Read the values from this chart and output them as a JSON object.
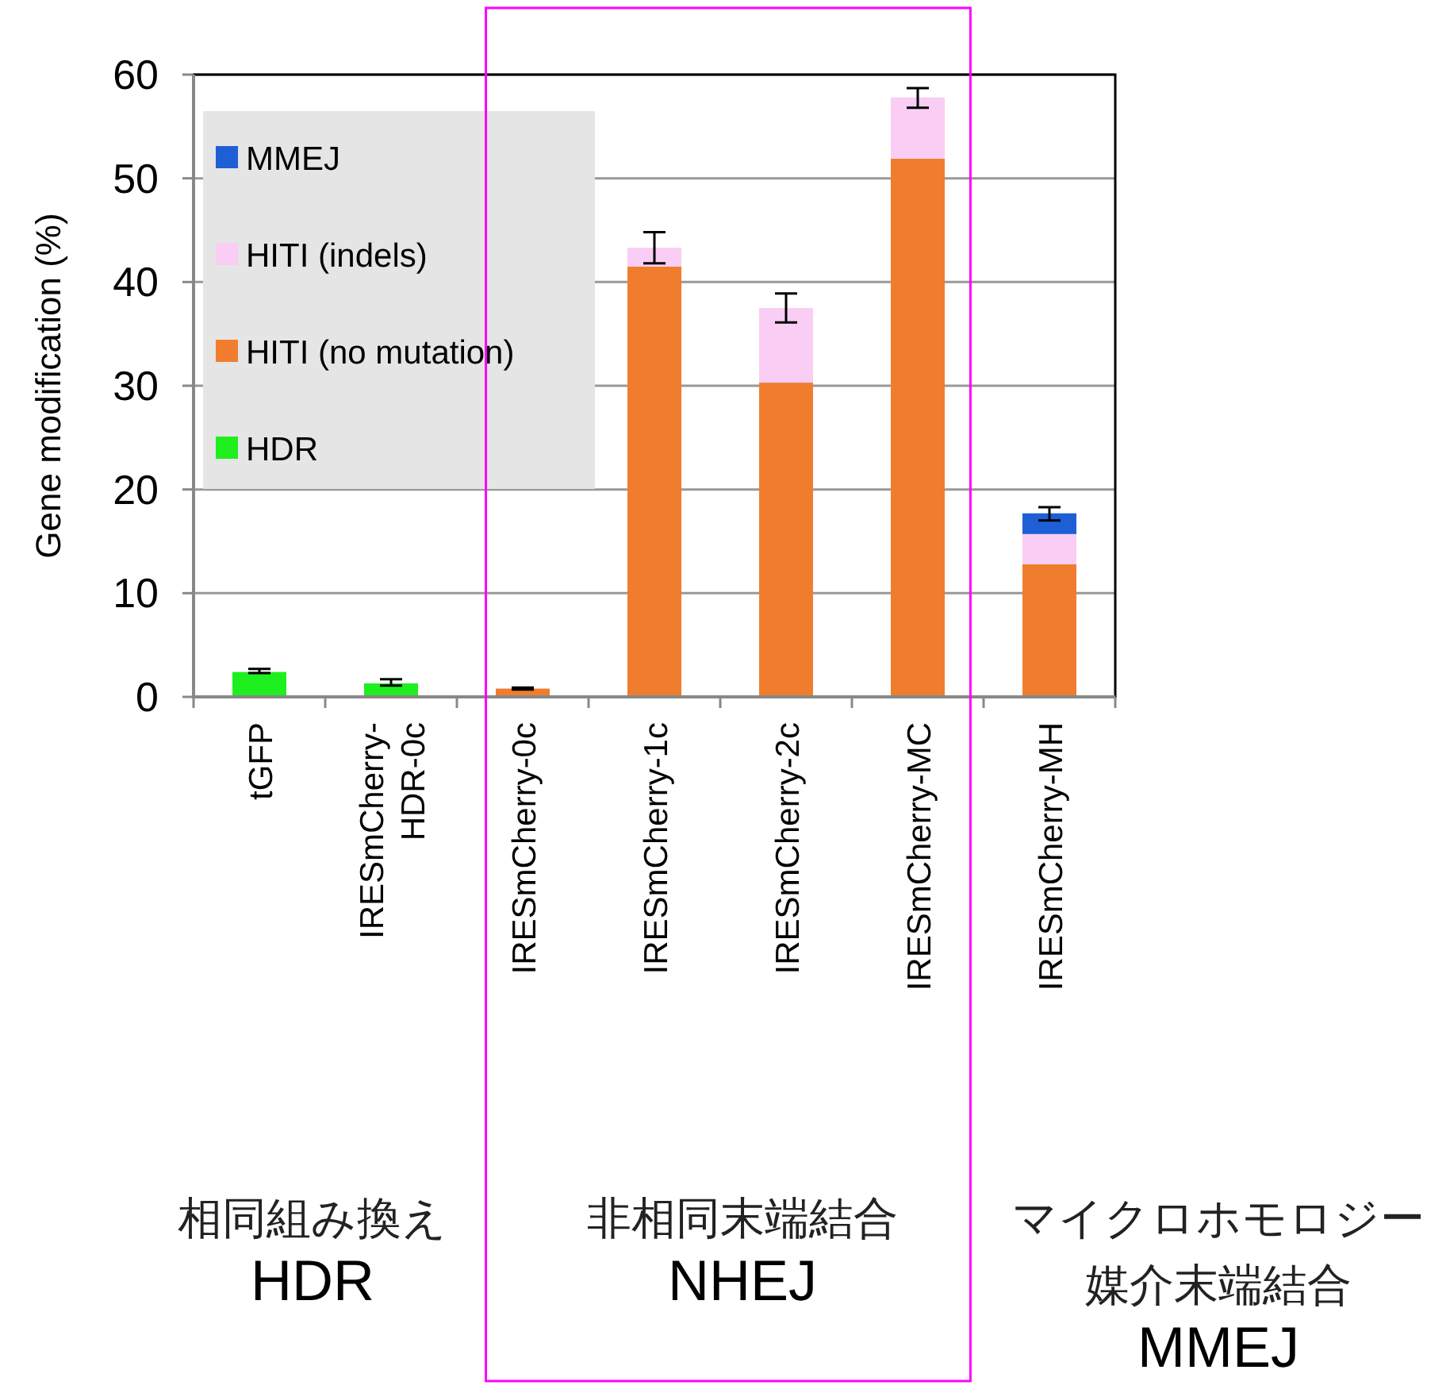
{
  "chart_data": {
    "type": "bar",
    "stacked": true,
    "ylabel": "Gene modification (%)",
    "categories": [
      "tGFP",
      "IRESmCherry-HDR-0c",
      "IRESmCherry-0c",
      "IRESmCherry-1c",
      "IRESmCherry-2c",
      "IRESmCherry-MC",
      "IRESmCherry-MH"
    ],
    "series": [
      {
        "name": "HDR",
        "color": "#1fee1f",
        "values": [
          2.4,
          1.3,
          0,
          0,
          0,
          0,
          0
        ],
        "errors": [
          [
            2.3,
            2.7
          ],
          [
            1.1,
            1.7
          ],
          null,
          null,
          null,
          null,
          null
        ]
      },
      {
        "name": "HITI (no mutation)",
        "color": "#f07d2e",
        "values": [
          0,
          0,
          0.8,
          41.5,
          30.3,
          51.9,
          12.8
        ],
        "errors": [
          null,
          null,
          [
            0.7,
            0.9
          ],
          null,
          null,
          null,
          null
        ]
      },
      {
        "name": "HITI (indels)",
        "color": "#f9cdf4",
        "values": [
          0,
          0,
          0,
          1.8,
          7.2,
          5.9,
          2.9
        ],
        "errors": [
          null,
          null,
          null,
          [
            41.8,
            44.8
          ],
          [
            36.1,
            38.9
          ],
          [
            56.8,
            58.7
          ],
          null
        ]
      },
      {
        "name": "MMEJ",
        "color": "#1f5fd6",
        "values": [
          0,
          0,
          0,
          0,
          0,
          0,
          2.0
        ],
        "errors": [
          null,
          null,
          null,
          null,
          null,
          null,
          [
            17.0,
            18.3
          ]
        ]
      }
    ],
    "ylim": [
      0,
      60
    ],
    "yticks": [
      0,
      10,
      20,
      30,
      40,
      50,
      60
    ],
    "grid": "y",
    "legend": "top left",
    "annotations": [
      "相同組み換え\nHDR",
      "非相同末端結合\nNHEJ",
      "マイクロホモロジー媒介末端結合\nMMEJ"
    ]
  }
}
